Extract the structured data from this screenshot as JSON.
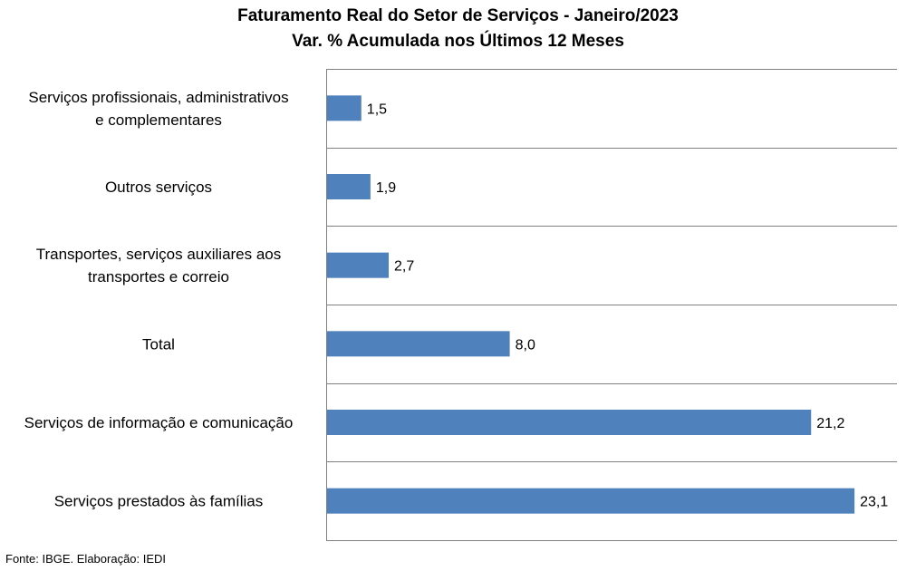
{
  "chart_data": {
    "type": "bar",
    "orientation": "horizontal",
    "title": "Faturamento Real do Setor de Serviços - Janeiro/2023",
    "subtitle": "Var. % Acumulada nos Últimos 12 Meses",
    "categories": [
      [
        "Serviços profissionais, administrativos",
        "e complementares"
      ],
      [
        "Outros serviços"
      ],
      [
        "Transportes, serviços auxiliares aos",
        "transportes e correio"
      ],
      [
        "Total"
      ],
      [
        "Serviços de informação e comunicação"
      ],
      [
        "Serviços prestados às famílias"
      ]
    ],
    "values": [
      1.5,
      1.9,
      2.7,
      8.0,
      21.2,
      23.1
    ],
    "value_labels": [
      "1,5",
      "1,9",
      "2,7",
      "8,0",
      "21,2",
      "23,1"
    ],
    "xlim": [
      0,
      25
    ],
    "bar_color": "#4F81BD",
    "grid_color": "#808080",
    "grid": "horizontal separators between categories",
    "legend": "none"
  },
  "source": "Fonte: IBGE. Elaboração: IEDI"
}
